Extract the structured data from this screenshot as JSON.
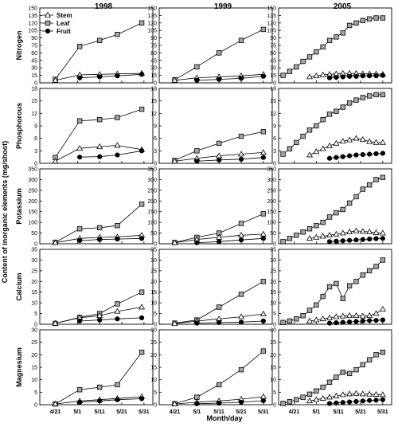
{
  "chart_data": {
    "type": "line",
    "ylabel": "Content of inorganic elements (mg/shoot)",
    "xlabel": "Month/day",
    "columns": [
      "1998",
      "1999",
      "2005"
    ],
    "rows": [
      {
        "name": "Nitrogen",
        "ylim": [
          0,
          150
        ],
        "ticks": [
          "0",
          "15",
          "30",
          "45",
          "60",
          "75",
          "90",
          "105",
          "120",
          "135",
          "150"
        ]
      },
      {
        "name": "Phosphorous",
        "ylim": [
          0,
          18
        ],
        "ticks": [
          "0",
          "3",
          "6",
          "9",
          "12",
          "15",
          "18"
        ]
      },
      {
        "name": "Potassium",
        "ylim": [
          0,
          350
        ],
        "ticks": [
          "0",
          "50",
          "100",
          "150",
          "200",
          "250",
          "300",
          "350"
        ]
      },
      {
        "name": "Calcium",
        "ylim": [
          0,
          35
        ],
        "ticks": [
          "0",
          "5",
          "10",
          "15",
          "20",
          "25",
          "30",
          "35"
        ]
      },
      {
        "name": "Magnesium",
        "ylim": [
          0,
          30
        ],
        "ticks": [
          "0",
          "5",
          "10",
          "15",
          "20",
          "25",
          "30"
        ]
      }
    ],
    "x_tick_labels": [
      "4/21",
      "5/1",
      "5/11",
      "5/21",
      "5/31"
    ],
    "x_tick_days": [
      0,
      10,
      20,
      30,
      40
    ],
    "xlim": [
      -7,
      44
    ],
    "legend": [
      "Stem",
      "Leaf",
      "Fruit"
    ],
    "series_style": {
      "Stem": "open-triangle",
      "Leaf": "gray-square",
      "Fruit": "filled-circle"
    },
    "panels": {
      "1998": {
        "days": [
          0,
          11,
          20,
          28,
          39
        ],
        "Nitrogen": {
          "Stem": [
            5,
            16,
            17,
            18,
            19
          ],
          "Leaf": [
            7,
            73,
            85,
            97,
            120
          ],
          "Fruit": [
            null,
            10,
            12,
            14,
            17
          ]
        },
        "Phosphorous": {
          "Stem": [
            0.5,
            3.6,
            4,
            4.3,
            3.3
          ],
          "Leaf": [
            1.4,
            10.2,
            10.5,
            11,
            13
          ],
          "Fruit": [
            null,
            1.5,
            1.6,
            2,
            3
          ]
        },
        "Potassium": {
          "Stem": [
            5,
            25,
            30,
            32,
            40
          ],
          "Leaf": [
            7,
            70,
            75,
            85,
            185
          ],
          "Fruit": [
            null,
            15,
            20,
            22,
            25
          ]
        },
        "Calcium": {
          "Stem": [
            0.4,
            3,
            4,
            6,
            8
          ],
          "Leaf": [
            0.4,
            3.2,
            5,
            9.5,
            15
          ],
          "Fruit": [
            null,
            1.5,
            2,
            2.5,
            3
          ]
        },
        "Magnesium": {
          "Stem": [
            0.3,
            1.5,
            2,
            2.5,
            3.2
          ],
          "Leaf": [
            0.3,
            6,
            7,
            8,
            21
          ],
          "Fruit": [
            null,
            1,
            1.5,
            2,
            2.4
          ]
        }
      },
      "1999": {
        "days": [
          0,
          10,
          20,
          30,
          40
        ],
        "Nitrogen": {
          "Stem": [
            5,
            10,
            12,
            14,
            17
          ],
          "Leaf": [
            6,
            32,
            60,
            85,
            107
          ],
          "Fruit": [
            null,
            5,
            7,
            9,
            13
          ]
        },
        "Phosphorous": {
          "Stem": [
            0.5,
            1.2,
            1.8,
            2.2,
            2.6
          ],
          "Leaf": [
            0.7,
            3,
            4.8,
            6.5,
            7.6
          ],
          "Fruit": [
            null,
            0.5,
            0.8,
            1,
            1.4
          ]
        },
        "Potassium": {
          "Stem": [
            5,
            20,
            30,
            40,
            45
          ],
          "Leaf": [
            6,
            30,
            50,
            95,
            140
          ],
          "Fruit": [
            null,
            5,
            10,
            18,
            25
          ]
        },
        "Calcium": {
          "Stem": [
            0.3,
            1.5,
            2.5,
            3.5,
            4.8
          ],
          "Leaf": [
            0.5,
            2,
            8,
            14,
            20
          ],
          "Fruit": [
            null,
            0.5,
            0.8,
            1,
            1.5
          ]
        },
        "Magnesium": {
          "Stem": [
            0.3,
            1,
            1.5,
            2.2,
            3.2
          ],
          "Leaf": [
            0.4,
            3,
            8,
            14,
            21.5
          ],
          "Fruit": [
            null,
            0.4,
            0.6,
            1,
            1.6
          ]
        }
      },
      "2005": {
        "leaf_days": [
          -5,
          -2,
          1,
          4,
          7,
          10,
          13,
          16,
          19,
          22,
          25,
          28,
          31,
          34,
          37,
          40
        ],
        "stem_days": [
          7,
          10,
          13,
          16,
          19,
          22,
          25,
          28,
          31,
          34,
          37,
          40
        ],
        "fruit_days": [
          16,
          19,
          22,
          25,
          28,
          31,
          34,
          37,
          40
        ],
        "Nitrogen": {
          "Leaf": [
            15,
            23,
            32,
            43,
            52,
            62,
            72,
            85,
            92,
            100,
            115,
            120,
            125,
            128,
            130,
            130
          ],
          "Stem": [
            12,
            14,
            16,
            17,
            18,
            19,
            19,
            19,
            18,
            18,
            18,
            17
          ],
          "Fruit": [
            10,
            11,
            12,
            13,
            13,
            14,
            14,
            14,
            15
          ]
        },
        "Phosphorous": {
          "Leaf": [
            2.2,
            3.5,
            5,
            6.5,
            8,
            9,
            10.5,
            11.8,
            12.5,
            13.5,
            14.5,
            15.2,
            15.8,
            16.2,
            16.5,
            16.5
          ],
          "Stem": [
            2,
            2.8,
            3.5,
            4.2,
            4.8,
            5.3,
            5.6,
            6,
            5.7,
            5.2,
            5,
            5
          ],
          "Fruit": [
            1.2,
            1.4,
            1.6,
            1.8,
            2,
            2.1,
            2.2,
            2.3,
            2.4
          ]
        },
        "Potassium": {
          "Leaf": [
            10,
            25,
            40,
            55,
            70,
            85,
            100,
            125,
            145,
            160,
            190,
            220,
            255,
            275,
            300,
            310
          ],
          "Stem": [
            25,
            30,
            35,
            40,
            45,
            50,
            55,
            60,
            58,
            55,
            52,
            50
          ],
          "Fruit": [
            10,
            12,
            14,
            16,
            18,
            20,
            22,
            24,
            25
          ]
        },
        "Calcium": {
          "Leaf": [
            0.8,
            1.5,
            2.5,
            4,
            6.5,
            9,
            13,
            17.5,
            19,
            12,
            18,
            20,
            23,
            25,
            27,
            30
          ],
          "Stem": [
            1.5,
            2,
            2.5,
            3,
            3.5,
            3.8,
            4,
            4,
            3.8,
            4,
            5,
            7
          ],
          "Fruit": [
            0.5,
            0.7,
            0.9,
            1.1,
            1.3,
            1.5,
            1.7,
            1.8,
            2
          ]
        },
        "Magnesium": {
          "Leaf": [
            0.5,
            1.2,
            2,
            3,
            4.2,
            5.5,
            7,
            9,
            11,
            13,
            12.5,
            14,
            16,
            18,
            20,
            21
          ],
          "Stem": [
            1.5,
            2,
            2.5,
            3,
            3.5,
            4,
            4.3,
            4.5,
            4.3,
            4.2,
            4.1,
            4
          ],
          "Fruit": [
            0.5,
            0.7,
            0.9,
            1.1,
            1.3,
            1.5,
            1.7,
            1.8,
            2
          ]
        }
      }
    }
  }
}
